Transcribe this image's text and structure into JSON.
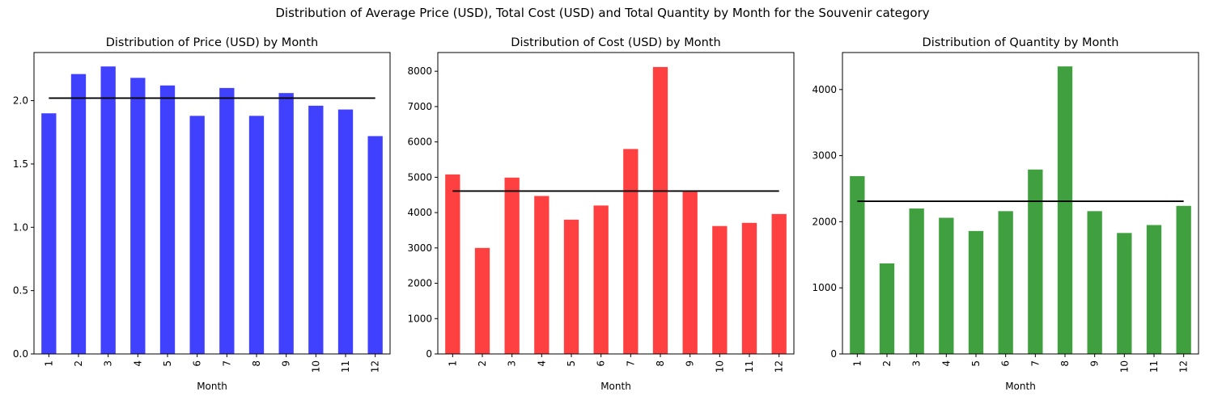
{
  "suptitle": "Distribution of Average Price (USD), Total Cost (USD) and Total Quantity by Month for the Souvenir category",
  "chart_data": [
    {
      "type": "bar",
      "title": "Distribution of Price (USD) by Month",
      "xlabel": "Month",
      "ylabel": "",
      "categories": [
        "1",
        "2",
        "3",
        "4",
        "5",
        "6",
        "7",
        "8",
        "9",
        "10",
        "11",
        "12"
      ],
      "values": [
        1.9,
        2.21,
        2.27,
        2.18,
        2.12,
        1.88,
        2.1,
        1.88,
        2.06,
        1.96,
        1.93,
        1.72
      ],
      "mean_line": 2.02,
      "ylim": [
        0,
        2.38
      ],
      "yticks": [
        0.0,
        0.5,
        1.0,
        1.5,
        2.0
      ],
      "ytick_labels": [
        "0.0",
        "0.5",
        "1.0",
        "1.5",
        "2.0"
      ],
      "bar_color": "#0000ff",
      "line_color": "#000000"
    },
    {
      "type": "bar",
      "title": "Distribution of Cost (USD) by Month",
      "xlabel": "Month",
      "ylabel": "",
      "categories": [
        "1",
        "2",
        "3",
        "4",
        "5",
        "6",
        "7",
        "8",
        "9",
        "10",
        "11",
        "12"
      ],
      "values": [
        5080,
        3000,
        4990,
        4470,
        3800,
        4200,
        5800,
        8120,
        4590,
        3620,
        3710,
        3960
      ],
      "mean_line": 4610,
      "ylim": [
        0,
        8530
      ],
      "yticks": [
        0,
        1000,
        2000,
        3000,
        4000,
        5000,
        6000,
        7000,
        8000
      ],
      "ytick_labels": [
        "0",
        "1000",
        "2000",
        "3000",
        "4000",
        "5000",
        "6000",
        "7000",
        "8000"
      ],
      "bar_color": "#ff0000",
      "line_color": "#000000"
    },
    {
      "type": "bar",
      "title": "Distribution of Quantity by Month",
      "xlabel": "Month",
      "ylabel": "",
      "categories": [
        "1",
        "2",
        "3",
        "4",
        "5",
        "6",
        "7",
        "8",
        "9",
        "10",
        "11",
        "12"
      ],
      "values": [
        2690,
        1370,
        2200,
        2060,
        1860,
        2160,
        2790,
        4350,
        2160,
        1830,
        1950,
        2240
      ],
      "mean_line": 2310,
      "ylim": [
        0,
        4560
      ],
      "yticks": [
        0,
        1000,
        2000,
        3000,
        4000
      ],
      "ytick_labels": [
        "0",
        "1000",
        "2000",
        "3000",
        "4000"
      ],
      "bar_color": "#008000",
      "line_color": "#000000"
    }
  ]
}
